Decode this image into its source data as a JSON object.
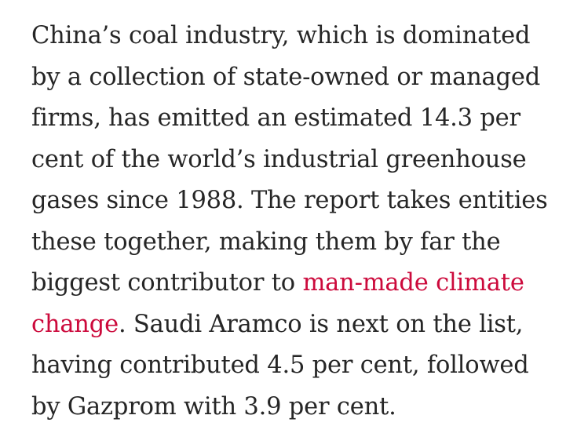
{
  "article": {
    "paragraph": {
      "lines": [
        "China’s coal industry, which is dominated",
        "by a collection of state-owned or managed",
        "firms, has emitted an estimated 14.3 per",
        "cent of the world’s industrial greenhouse",
        "gases since 1988. The report takes entities",
        "these together, making them by far the",
        "biggest contributor to ",
        "",
        ". Saudi Aramco is next on the list,",
        "having contributed 4.5 per cent, followed",
        "by Gazprom with 3.9 per cent."
      ],
      "link_part1": "man-made climate",
      "link_part2": "change"
    },
    "colors": {
      "text": "#262626",
      "link": "#cc0a3c",
      "background": "#ffffff"
    }
  }
}
